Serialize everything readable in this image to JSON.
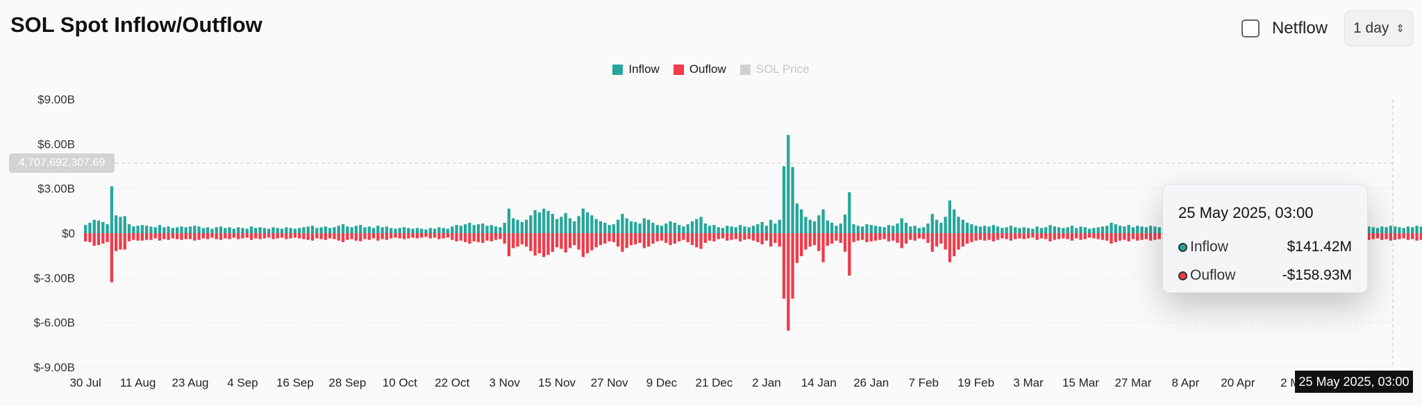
{
  "header": {
    "title": "SOL Spot Inflow/Outflow"
  },
  "controls": {
    "netflow_label": "Netflow",
    "netflow_checked": false,
    "interval": "1 day"
  },
  "colors": {
    "inflow": "#26a69a",
    "outflow": "#ef3b4a",
    "price": "#d0d0d0"
  },
  "crosshair": {
    "value_label": "4,707,692,307.69",
    "value": 4707692307.69,
    "date_label": "25 May 2025, 03:00"
  },
  "tooltip": {
    "date": "25 May 2025, 03:00",
    "rows": [
      {
        "name": "Inflow",
        "value": "$141.42M"
      },
      {
        "name": "Ouflow",
        "value": "-$158.93M"
      }
    ]
  },
  "chart_data": {
    "type": "bar",
    "legend": [
      {
        "name": "Inflow",
        "color": "#26a69a",
        "muted": false
      },
      {
        "name": "Ouflow",
        "color": "#ef3b4a",
        "muted": false
      },
      {
        "name": "SOL Price",
        "color": "#d0d0d0",
        "muted": true
      }
    ],
    "legend_position": "top-center",
    "grid": true,
    "ylim": [
      -9,
      9
    ],
    "y_unit": "billion USD",
    "y_ticks": [
      "$9.00B",
      "$6.00B",
      "$3.00B",
      "$0",
      "$-3.00B",
      "$-6.00B",
      "$-9.00B"
    ],
    "y_tick_values": [
      9,
      6,
      3,
      0,
      -3,
      -6,
      -9
    ],
    "x_ticks": [
      "30 Jul",
      "11 Aug",
      "23 Aug",
      "4 Sep",
      "16 Sep",
      "28 Sep",
      "10 Oct",
      "22 Oct",
      "3 Nov",
      "15 Nov",
      "27 Nov",
      "9 Dec",
      "21 Dec",
      "2 Jan",
      "14 Jan",
      "26 Jan",
      "7 Feb",
      "19 Feb",
      "3 Mar",
      "15 Mar",
      "27 Mar",
      "8 Apr",
      "20 Apr",
      "2 M"
    ],
    "x_tick_day_index": [
      0,
      12,
      24,
      36,
      48,
      60,
      72,
      84,
      96,
      108,
      120,
      132,
      144,
      156,
      168,
      180,
      192,
      204,
      216,
      228,
      240,
      252,
      264,
      276
    ],
    "start_date": "2024-07-30",
    "day_count": 300,
    "series": [
      {
        "name": "Inflow",
        "values": [
          0.55,
          0.7,
          0.9,
          0.85,
          0.75,
          0.6,
          3.15,
          1.2,
          1.1,
          1.15,
          0.6,
          0.45,
          0.5,
          0.55,
          0.5,
          0.45,
          0.4,
          0.55,
          0.4,
          0.45,
          0.35,
          0.4,
          0.45,
          0.4,
          0.45,
          0.5,
          0.45,
          0.35,
          0.4,
          0.3,
          0.4,
          0.45,
          0.35,
          0.4,
          0.3,
          0.4,
          0.35,
          0.3,
          0.45,
          0.35,
          0.4,
          0.35,
          0.3,
          0.4,
          0.35,
          0.3,
          0.4,
          0.35,
          0.3,
          0.35,
          0.4,
          0.45,
          0.5,
          0.35,
          0.4,
          0.45,
          0.35,
          0.4,
          0.5,
          0.6,
          0.45,
          0.4,
          0.5,
          0.55,
          0.4,
          0.45,
          0.35,
          0.5,
          0.4,
          0.45,
          0.35,
          0.3,
          0.35,
          0.4,
          0.35,
          0.3,
          0.35,
          0.3,
          0.25,
          0.35,
          0.3,
          0.4,
          0.35,
          0.3,
          0.45,
          0.55,
          0.5,
          0.6,
          0.7,
          0.55,
          0.6,
          0.65,
          0.5,
          0.55,
          0.45,
          0.4,
          0.7,
          1.65,
          1.0,
          0.9,
          0.75,
          0.9,
          1.2,
          1.55,
          1.4,
          1.65,
          1.5,
          1.3,
          0.95,
          1.1,
          1.35,
          1.0,
          0.8,
          1.15,
          1.65,
          1.4,
          1.2,
          0.95,
          0.8,
          0.7,
          0.55,
          0.6,
          0.9,
          1.3,
          1.0,
          0.8,
          0.75,
          0.65,
          1.0,
          0.9,
          0.7,
          0.55,
          0.5,
          0.65,
          0.8,
          0.7,
          0.55,
          0.45,
          0.6,
          0.8,
          0.95,
          1.1,
          0.65,
          0.5,
          0.55,
          0.4,
          0.35,
          0.5,
          0.45,
          0.4,
          0.55,
          0.45,
          0.4,
          0.5,
          0.6,
          0.75,
          0.5,
          0.9,
          0.65,
          0.9,
          4.5,
          6.6,
          4.45,
          2.0,
          1.6,
          1.1,
          0.9,
          0.8,
          1.2,
          1.6,
          0.85,
          0.7,
          0.5,
          0.65,
          1.25,
          2.75,
          0.6,
          0.5,
          0.45,
          0.6,
          0.55,
          0.5,
          0.45,
          0.4,
          0.55,
          0.5,
          0.65,
          1.0,
          0.7,
          0.45,
          0.5,
          0.35,
          0.4,
          0.65,
          1.3,
          0.9,
          0.7,
          1.1,
          2.2,
          1.6,
          1.1,
          0.9,
          0.7,
          0.6,
          0.5,
          0.45,
          0.5,
          0.45,
          0.55,
          0.45,
          0.35,
          0.4,
          0.5,
          0.4,
          0.35,
          0.4,
          0.35,
          0.3,
          0.45,
          0.35,
          0.4,
          0.55,
          0.45,
          0.4,
          0.35,
          0.4,
          0.5,
          0.35,
          0.45,
          0.4,
          0.3,
          0.35,
          0.4,
          0.45,
          0.5,
          0.7,
          0.6,
          0.5,
          0.45,
          0.55,
          0.4,
          0.5,
          0.45,
          0.4,
          0.5,
          0.45,
          0.4,
          0.35,
          0.45,
          0.5,
          0.4,
          0.35,
          0.4,
          0.45,
          0.5,
          0.4,
          0.35,
          0.45,
          0.4,
          0.35,
          0.45,
          0.4,
          0.5,
          0.45,
          0.4,
          0.35,
          0.45,
          0.4,
          0.5,
          0.45,
          0.4,
          0.35,
          0.45,
          0.4,
          0.35,
          0.45,
          0.5,
          0.4,
          0.45,
          0.35,
          0.4,
          0.45,
          0.4,
          0.35,
          0.45,
          0.4,
          0.5,
          0.45,
          0.4,
          0.35,
          0.5,
          0.45,
          0.4,
          0.5,
          0.45,
          0.4,
          0.35,
          0.45,
          0.4,
          0.5,
          0.45,
          0.4,
          0.35,
          0.45,
          0.4,
          0.5,
          0.45,
          0.5,
          0.6,
          0.55,
          1.0,
          0.35,
          0.141
        ]
      },
      {
        "name": "Ouflow",
        "values": [
          -0.55,
          -0.6,
          -0.85,
          -0.8,
          -0.7,
          -0.6,
          -3.3,
          -1.2,
          -1.1,
          -1.1,
          -0.55,
          -0.45,
          -0.5,
          -0.5,
          -0.45,
          -0.45,
          -0.35,
          -0.5,
          -0.4,
          -0.45,
          -0.35,
          -0.4,
          -0.45,
          -0.4,
          -0.4,
          -0.5,
          -0.45,
          -0.35,
          -0.4,
          -0.3,
          -0.4,
          -0.45,
          -0.35,
          -0.4,
          -0.3,
          -0.4,
          -0.35,
          -0.3,
          -0.45,
          -0.35,
          -0.4,
          -0.35,
          -0.3,
          -0.4,
          -0.35,
          -0.3,
          -0.4,
          -0.35,
          -0.3,
          -0.35,
          -0.4,
          -0.45,
          -0.5,
          -0.35,
          -0.4,
          -0.45,
          -0.35,
          -0.4,
          -0.5,
          -0.6,
          -0.45,
          -0.4,
          -0.5,
          -0.55,
          -0.4,
          -0.45,
          -0.35,
          -0.5,
          -0.4,
          -0.45,
          -0.35,
          -0.3,
          -0.35,
          -0.4,
          -0.35,
          -0.3,
          -0.35,
          -0.3,
          -0.25,
          -0.35,
          -0.3,
          -0.4,
          -0.35,
          -0.3,
          -0.45,
          -0.55,
          -0.5,
          -0.6,
          -0.7,
          -0.55,
          -0.6,
          -0.65,
          -0.5,
          -0.55,
          -0.45,
          -0.4,
          -0.7,
          -1.55,
          -1.0,
          -0.9,
          -0.75,
          -0.9,
          -1.2,
          -1.5,
          -1.35,
          -1.6,
          -1.45,
          -1.25,
          -0.95,
          -1.05,
          -1.3,
          -1.0,
          -0.8,
          -1.1,
          -1.6,
          -1.35,
          -1.15,
          -0.95,
          -0.8,
          -0.7,
          -0.55,
          -0.6,
          -0.9,
          -1.25,
          -1.0,
          -0.8,
          -0.75,
          -0.65,
          -1.0,
          -0.9,
          -0.7,
          -0.55,
          -0.5,
          -0.65,
          -0.8,
          -0.7,
          -0.55,
          -0.45,
          -0.6,
          -0.8,
          -0.95,
          -1.05,
          -0.65,
          -0.5,
          -0.55,
          -0.4,
          -0.35,
          -0.5,
          -0.45,
          -0.4,
          -0.55,
          -0.45,
          -0.4,
          -0.5,
          -0.6,
          -0.75,
          -0.5,
          -0.9,
          -0.65,
          -0.9,
          -4.4,
          -6.55,
          -4.4,
          -2.0,
          -1.55,
          -1.1,
          -0.9,
          -0.8,
          -1.2,
          -1.95,
          -0.85,
          -0.7,
          -0.5,
          -0.65,
          -1.25,
          -2.85,
          -0.6,
          -0.5,
          -0.45,
          -0.6,
          -0.55,
          -0.5,
          -0.45,
          -0.4,
          -0.55,
          -0.5,
          -0.65,
          -1.0,
          -0.7,
          -0.45,
          -0.5,
          -0.35,
          -0.4,
          -0.65,
          -1.25,
          -0.9,
          -0.7,
          -1.1,
          -1.95,
          -1.55,
          -1.1,
          -0.9,
          -0.7,
          -0.6,
          -0.5,
          -0.45,
          -0.5,
          -0.45,
          -0.55,
          -0.45,
          -0.35,
          -0.4,
          -0.5,
          -0.4,
          -0.35,
          -0.4,
          -0.35,
          -0.3,
          -0.45,
          -0.35,
          -0.4,
          -0.55,
          -0.45,
          -0.4,
          -0.35,
          -0.4,
          -0.5,
          -0.35,
          -0.45,
          -0.4,
          -0.3,
          -0.35,
          -0.4,
          -0.45,
          -0.5,
          -0.7,
          -0.6,
          -0.5,
          -0.45,
          -0.55,
          -0.4,
          -0.5,
          -0.45,
          -0.4,
          -0.5,
          -0.45,
          -0.4,
          -0.35,
          -0.45,
          -0.5,
          -0.4,
          -0.35,
          -0.4,
          -0.45,
          -0.5,
          -0.4,
          -0.35,
          -0.45,
          -0.4,
          -0.35,
          -0.45,
          -0.4,
          -0.5,
          -0.45,
          -0.4,
          -0.35,
          -0.45,
          -0.4,
          -0.5,
          -0.45,
          -0.4,
          -0.35,
          -0.45,
          -0.4,
          -0.35,
          -0.45,
          -0.5,
          -0.4,
          -0.45,
          -0.35,
          -0.4,
          -0.45,
          -0.4,
          -0.35,
          -0.45,
          -0.4,
          -0.5,
          -0.45,
          -0.4,
          -0.35,
          -0.5,
          -0.45,
          -0.4,
          -0.5,
          -0.45,
          -0.4,
          -0.35,
          -0.45,
          -0.4,
          -0.5,
          -0.45,
          -0.4,
          -0.35,
          -0.45,
          -0.4,
          -0.5,
          -0.45,
          -0.5,
          -0.6,
          -0.55,
          -1.05,
          -0.35,
          -0.159
        ]
      }
    ]
  }
}
